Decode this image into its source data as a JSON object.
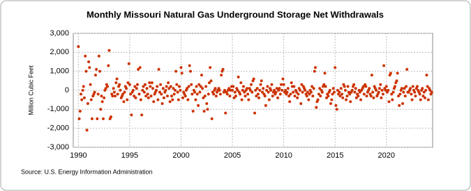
{
  "chart_data": {
    "type": "scatter",
    "title": "Monthly Missouri Natural Gas Underground Storage Net Withdrawals",
    "y_label": "Million Cubic Feet",
    "source": "Source: U.S. Energy Information Administration",
    "color": "#cc3300",
    "grid": true,
    "xlim": [
      1989.5,
      2024.5
    ],
    "xticks": [
      1990,
      1995,
      2000,
      2005,
      2010,
      2015,
      2020
    ],
    "ylim": [
      -3000,
      3000
    ],
    "yticks": [
      {
        "value": 3000,
        "label": "3,000"
      },
      {
        "value": 2000,
        "label": "2,000"
      },
      {
        "value": 1000,
        "label": "1,000"
      },
      0,
      {
        "value": -1000,
        "label": "-1,000"
      },
      {
        "value": -2000,
        "label": "-2,000"
      },
      {
        "value": -3000,
        "label": "-3,000"
      }
    ],
    "x": [
      1990.0,
      1990.08,
      1990.17,
      1990.25,
      1990.33,
      1990.42,
      1990.5,
      1990.58,
      1990.67,
      1990.75,
      1990.83,
      1990.92,
      1991.0,
      1991.08,
      1991.17,
      1991.25,
      1991.33,
      1991.42,
      1991.5,
      1991.58,
      1991.67,
      1991.75,
      1991.83,
      1991.92,
      1992.0,
      1992.08,
      1992.17,
      1992.25,
      1992.33,
      1992.42,
      1992.5,
      1992.58,
      1992.67,
      1992.75,
      1992.83,
      1992.92,
      1993.0,
      1993.08,
      1993.17,
      1993.25,
      1993.33,
      1993.42,
      1993.5,
      1993.58,
      1993.67,
      1993.75,
      1993.83,
      1993.92,
      1994.0,
      1994.08,
      1994.17,
      1994.25,
      1994.33,
      1994.42,
      1994.5,
      1994.58,
      1994.67,
      1994.75,
      1994.83,
      1994.92,
      1995.0,
      1995.08,
      1995.17,
      1995.25,
      1995.33,
      1995.42,
      1995.5,
      1995.58,
      1995.67,
      1995.75,
      1995.83,
      1995.92,
      1996.0,
      1996.08,
      1996.17,
      1996.25,
      1996.33,
      1996.42,
      1996.5,
      1996.58,
      1996.67,
      1996.75,
      1996.83,
      1996.92,
      1997.0,
      1997.08,
      1997.17,
      1997.25,
      1997.33,
      1997.42,
      1997.5,
      1997.58,
      1997.67,
      1997.75,
      1997.83,
      1997.92,
      1998.0,
      1998.08,
      1998.17,
      1998.25,
      1998.33,
      1998.42,
      1998.5,
      1998.58,
      1998.67,
      1998.75,
      1998.83,
      1998.92,
      1999.0,
      1999.08,
      1999.17,
      1999.25,
      1999.33,
      1999.42,
      1999.5,
      1999.58,
      1999.67,
      1999.75,
      1999.83,
      1999.92,
      2000.0,
      2000.08,
      2000.17,
      2000.25,
      2000.33,
      2000.42,
      2000.5,
      2000.58,
      2000.67,
      2000.75,
      2000.83,
      2000.92,
      2001.0,
      2001.08,
      2001.17,
      2001.25,
      2001.33,
      2001.42,
      2001.5,
      2001.58,
      2001.67,
      2001.75,
      2001.83,
      2001.92,
      2002.0,
      2002.08,
      2002.17,
      2002.25,
      2002.33,
      2002.42,
      2002.5,
      2002.58,
      2002.67,
      2002.75,
      2002.83,
      2002.92,
      2003.0,
      2003.08,
      2003.17,
      2003.25,
      2003.33,
      2003.42,
      2003.5,
      2003.58,
      2003.67,
      2003.75,
      2003.83,
      2003.92,
      2004.0,
      2004.08,
      2004.17,
      2004.25,
      2004.33,
      2004.42,
      2004.5,
      2004.58,
      2004.67,
      2004.75,
      2004.83,
      2004.92,
      2005.0,
      2005.08,
      2005.17,
      2005.25,
      2005.33,
      2005.42,
      2005.5,
      2005.58,
      2005.67,
      2005.75,
      2005.83,
      2005.92,
      2006.0,
      2006.08,
      2006.17,
      2006.25,
      2006.33,
      2006.42,
      2006.5,
      2006.58,
      2006.67,
      2006.75,
      2006.83,
      2006.92,
      2007.0,
      2007.08,
      2007.17,
      2007.25,
      2007.33,
      2007.42,
      2007.5,
      2007.58,
      2007.67,
      2007.75,
      2007.83,
      2007.92,
      2008.0,
      2008.08,
      2008.17,
      2008.25,
      2008.33,
      2008.42,
      2008.5,
      2008.58,
      2008.67,
      2008.75,
      2008.83,
      2008.92,
      2009.0,
      2009.08,
      2009.17,
      2009.25,
      2009.33,
      2009.42,
      2009.5,
      2009.58,
      2009.67,
      2009.75,
      2009.83,
      2009.92,
      2010.0,
      2010.08,
      2010.17,
      2010.25,
      2010.33,
      2010.42,
      2010.5,
      2010.58,
      2010.67,
      2010.75,
      2010.83,
      2010.92,
      2011.0,
      2011.08,
      2011.17,
      2011.25,
      2011.33,
      2011.42,
      2011.5,
      2011.58,
      2011.67,
      2011.75,
      2011.83,
      2011.92,
      2012.0,
      2012.08,
      2012.17,
      2012.25,
      2012.33,
      2012.42,
      2012.5,
      2012.58,
      2012.67,
      2012.75,
      2012.83,
      2012.92,
      2013.0,
      2013.08,
      2013.17,
      2013.25,
      2013.33,
      2013.42,
      2013.5,
      2013.58,
      2013.67,
      2013.75,
      2013.83,
      2013.92,
      2014.0,
      2014.08,
      2014.17,
      2014.25,
      2014.33,
      2014.42,
      2014.5,
      2014.58,
      2014.67,
      2014.75,
      2014.83,
      2014.92,
      2015.0,
      2015.08,
      2015.17,
      2015.25,
      2015.33,
      2015.42,
      2015.5,
      2015.58,
      2015.67,
      2015.75,
      2015.83,
      2015.92,
      2016.0,
      2016.08,
      2016.17,
      2016.25,
      2016.33,
      2016.42,
      2016.5,
      2016.58,
      2016.67,
      2016.75,
      2016.83,
      2016.92,
      2017.0,
      2017.08,
      2017.17,
      2017.25,
      2017.33,
      2017.42,
      2017.5,
      2017.58,
      2017.67,
      2017.75,
      2017.83,
      2017.92,
      2018.0,
      2018.08,
      2018.17,
      2018.25,
      2018.33,
      2018.42,
      2018.5,
      2018.58,
      2018.67,
      2018.75,
      2018.83,
      2018.92,
      2019.0,
      2019.08,
      2019.17,
      2019.25,
      2019.33,
      2019.42,
      2019.5,
      2019.58,
      2019.67,
      2019.75,
      2019.83,
      2019.92,
      2020.0,
      2020.08,
      2020.17,
      2020.25,
      2020.33,
      2020.42,
      2020.5,
      2020.58,
      2020.67,
      2020.75,
      2020.83,
      2020.92,
      2021.0,
      2021.08,
      2021.17,
      2021.25,
      2021.33,
      2021.42,
      2021.5,
      2021.58,
      2021.67,
      2021.75,
      2021.83,
      2021.92,
      2022.0,
      2022.08,
      2022.17,
      2022.25,
      2022.33,
      2022.42,
      2022.5,
      2022.58,
      2022.67,
      2022.75,
      2022.83,
      2022.92,
      2023.0,
      2023.08,
      2023.17,
      2023.25,
      2023.33,
      2023.42,
      2023.5,
      2023.58,
      2023.67,
      2023.75,
      2023.83,
      2023.92,
      2024.0,
      2024.08,
      2024.17,
      2024.25,
      2024.33,
      2024.42
    ],
    "values": [
      2300,
      -1500,
      -1100,
      -200,
      -500,
      0,
      200,
      -400,
      1800,
      1000,
      -2100,
      -700,
      1500,
      1200,
      300,
      -500,
      -1500,
      -300,
      -200,
      -100,
      800,
      1100,
      -1500,
      -200,
      1800,
      1000,
      -1000,
      -300,
      -600,
      -1500,
      -400,
      0,
      100,
      300,
      200,
      1300,
      2100,
      -1500,
      -1400,
      -200,
      -300,
      100,
      -100,
      -300,
      400,
      600,
      -200,
      200,
      300,
      0,
      -400,
      -300,
      -200,
      -600,
      -100,
      200,
      100,
      -500,
      400,
      1400,
      300,
      -200,
      -1300,
      -100,
      0,
      -300,
      200,
      -400,
      100,
      300,
      1100,
      -200,
      1200,
      -500,
      -1300,
      0,
      200,
      -100,
      300,
      -300,
      100,
      -200,
      -400,
      400,
      200,
      -300,
      400,
      100,
      -600,
      -200,
      -100,
      0,
      200,
      -500,
      1100,
      -100,
      300,
      -200,
      -700,
      100,
      -400,
      -100,
      0,
      200,
      -300,
      400,
      100,
      -600,
      200,
      -300,
      -500,
      100,
      -200,
      0,
      1000,
      300,
      -100,
      -500,
      200,
      0,
      1200,
      900,
      -400,
      -100,
      -200,
      -300,
      0,
      100,
      -500,
      200,
      1300,
      1000,
      300,
      -200,
      -1100,
      0,
      -100,
      -500,
      200,
      -200,
      -800,
      300,
      -100,
      200,
      800,
      100,
      -400,
      -1100,
      -300,
      200,
      -700,
      -1000,
      -200,
      400,
      1200,
      500,
      -1500,
      -100,
      -200,
      0,
      100,
      -300,
      -100,
      0,
      100,
      0,
      -200,
      800,
      1000,
      1100,
      -100,
      0,
      -1200,
      -100,
      -200,
      0,
      100,
      -300,
      0,
      200,
      0,
      200,
      -400,
      -100,
      -300,
      100,
      0,
      700,
      -100,
      -200,
      400,
      -500,
      0,
      200,
      -100,
      -300,
      0,
      100,
      -200,
      -500,
      100,
      0,
      300,
      -100,
      500,
      600,
      -1200,
      0,
      -300,
      100,
      -200,
      -400,
      0,
      300,
      500,
      -100,
      100,
      -200,
      -300,
      -800,
      0,
      200,
      -100,
      -500,
      100,
      0,
      300,
      -300,
      -100,
      0,
      -200,
      -100,
      100,
      -400,
      0,
      100,
      -200,
      300,
      0,
      600,
      300,
      -100,
      0,
      -200,
      -100,
      100,
      -300,
      -600,
      -200,
      400,
      200,
      -100,
      200,
      -300,
      0,
      -100,
      -400,
      -200,
      100,
      0,
      -700,
      300,
      -100,
      200,
      100,
      0,
      -200,
      -300,
      -100,
      -500,
      -200,
      0,
      -100,
      200,
      -300,
      100,
      1000,
      1200,
      -900,
      -600,
      -500,
      -200,
      100,
      -300,
      0,
      -100,
      200,
      300,
      900,
      200,
      -400,
      -200,
      -300,
      -100,
      0,
      -700,
      -500,
      -200,
      100,
      -100,
      1200,
      -800,
      -1000,
      0,
      -200,
      -100,
      -300,
      100,
      -200,
      -400,
      300,
      200,
      0,
      -500,
      -300,
      200,
      -100,
      -200,
      -600,
      -100,
      0,
      200,
      300,
      -100,
      100,
      -400,
      -200,
      -300,
      0,
      -100,
      -500,
      0,
      100,
      200,
      -200,
      300,
      200,
      -300,
      -100,
      0,
      100,
      -200,
      -300,
      800,
      -100,
      -400,
      200,
      100,
      0,
      -300,
      -200,
      -100,
      100,
      300,
      -400,
      0,
      -200,
      1300,
      100,
      0,
      200,
      -100,
      0,
      -600,
      800,
      900,
      -200,
      -500,
      -100,
      100,
      200,
      400,
      500,
      900,
      -300,
      -800,
      -200,
      0,
      100,
      -700,
      -100,
      100,
      -300,
      200,
      1100,
      -100,
      -100,
      0,
      100,
      -200,
      -500,
      200,
      0,
      -100,
      -300,
      100,
      200,
      0,
      -100,
      -200,
      -500,
      0,
      100,
      -300,
      -100,
      -400,
      0,
      800,
      200,
      -500,
      100,
      0,
      -200,
      -100
    ]
  }
}
